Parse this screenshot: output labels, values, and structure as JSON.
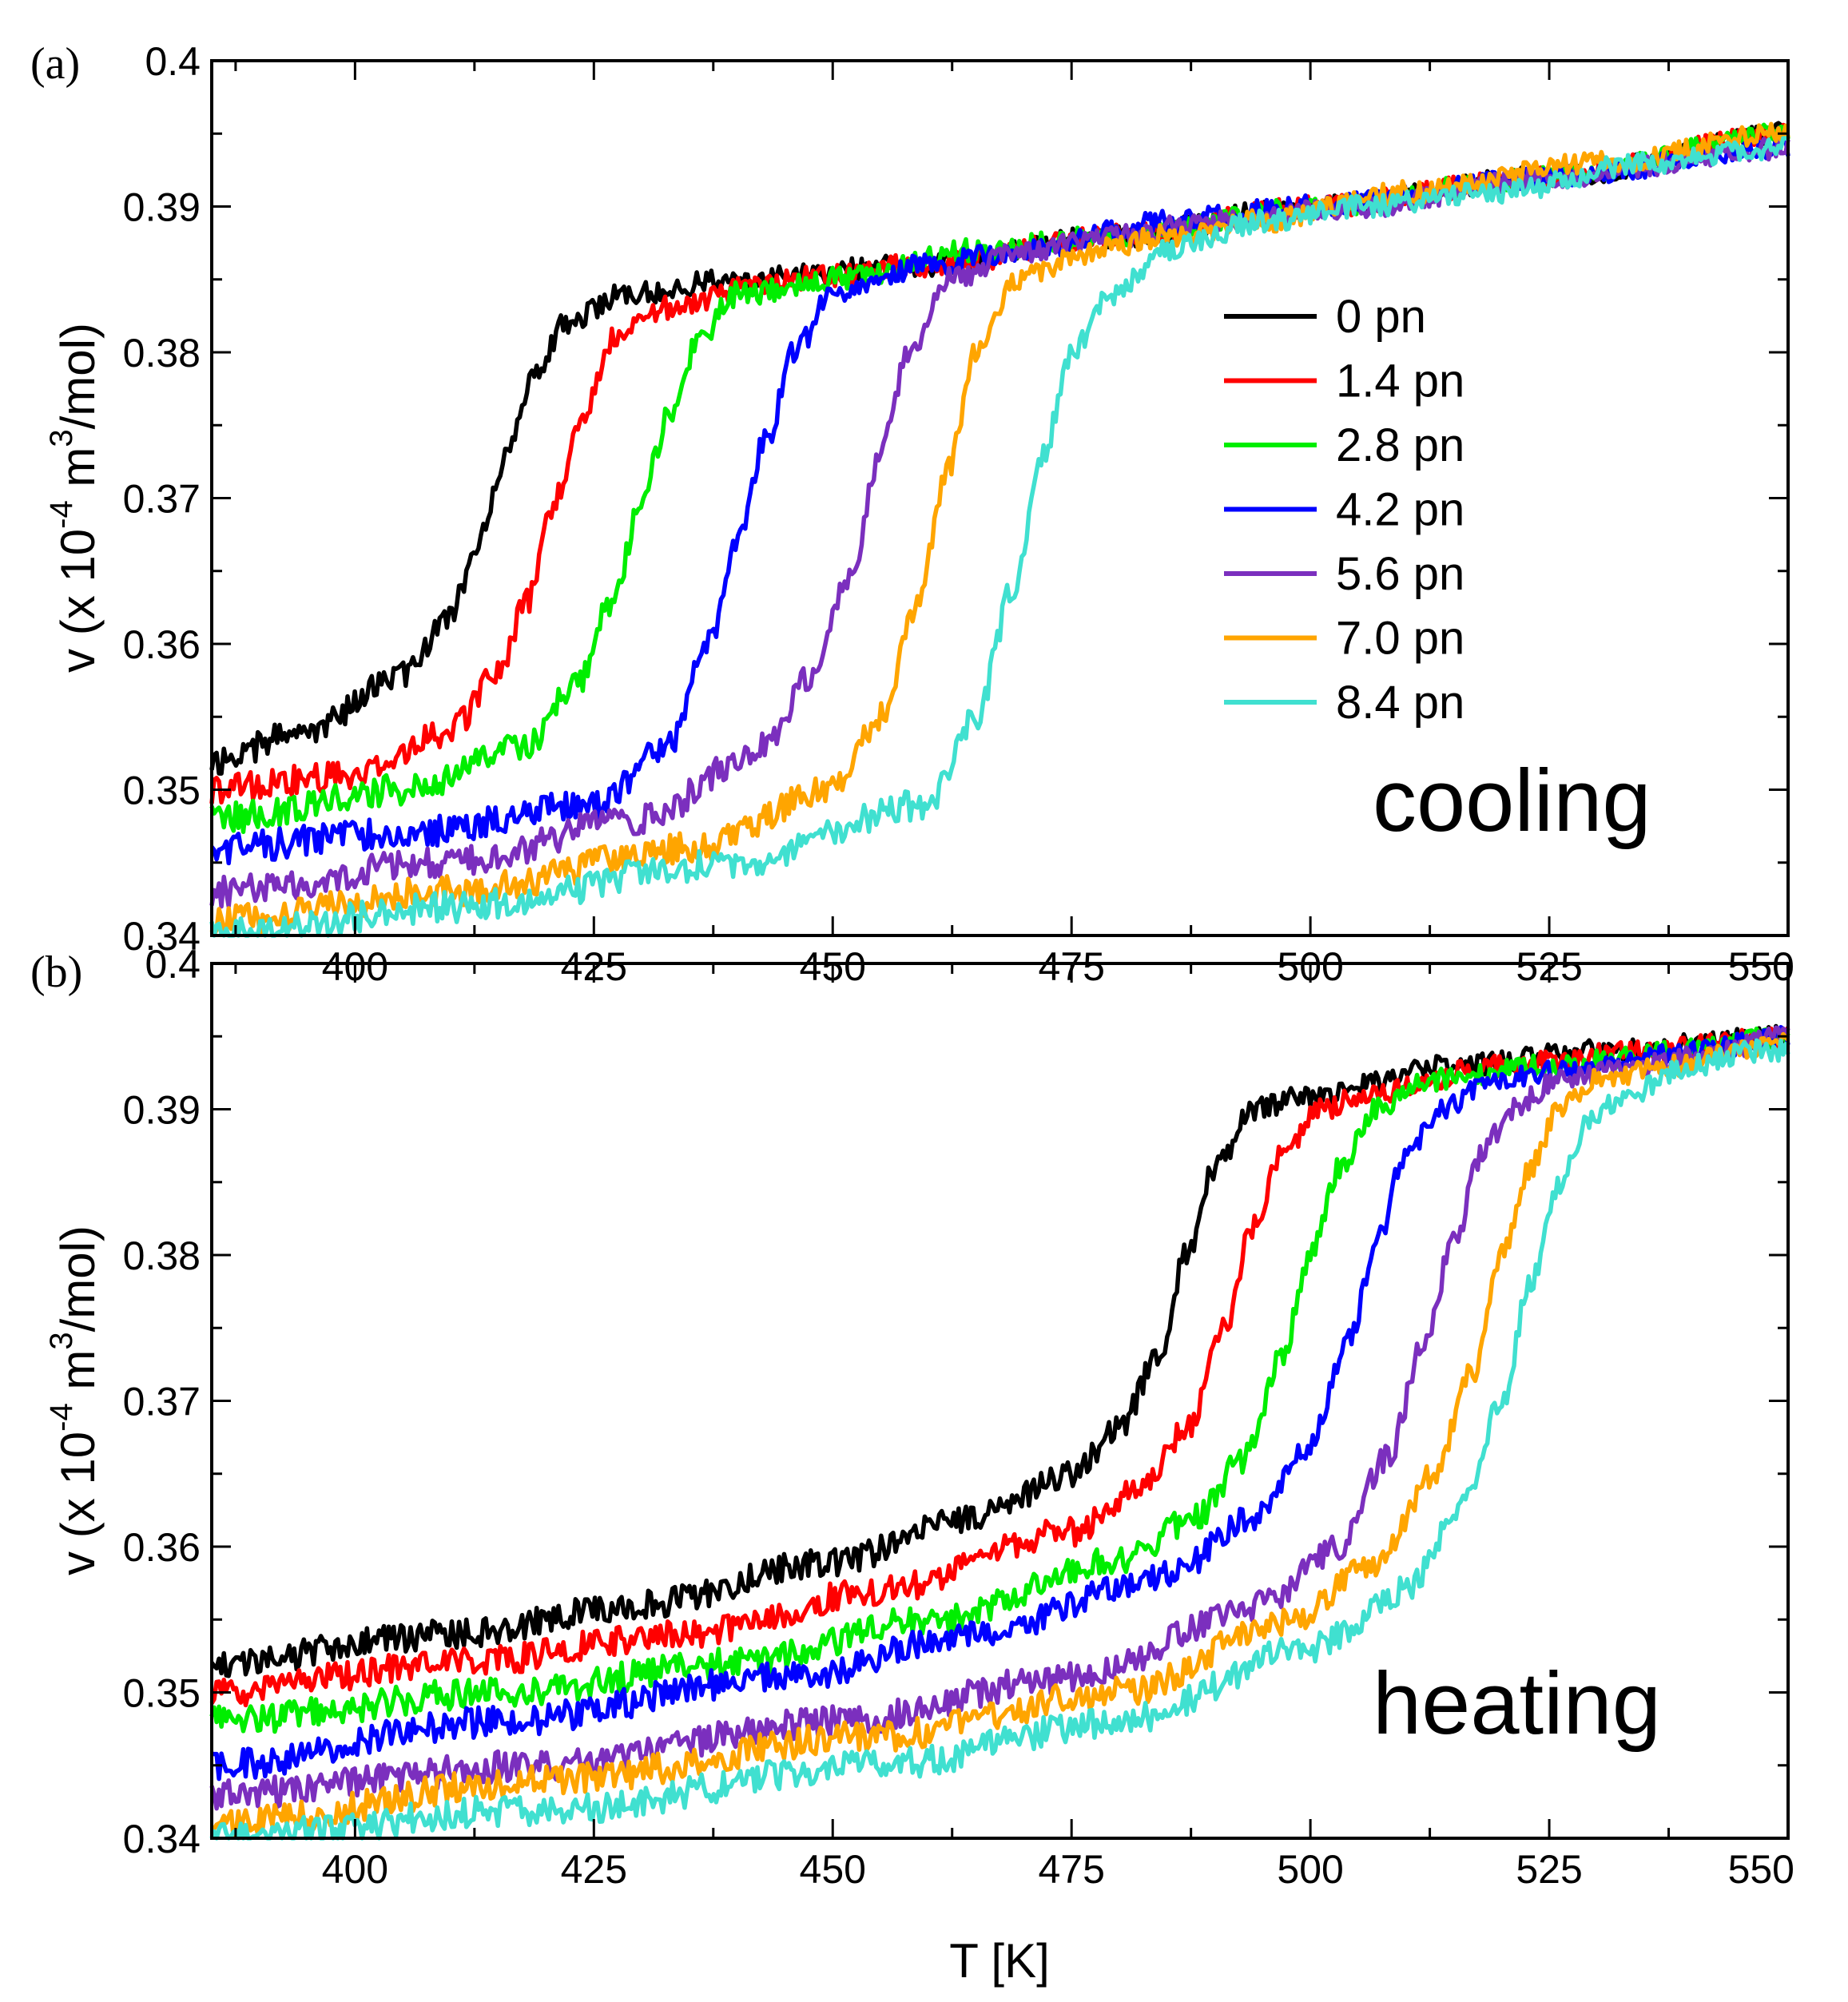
{
  "chart_data": [
    {
      "type": "line",
      "panel": "(a)",
      "annotation": "cooling",
      "xlim": [
        385,
        550
      ],
      "ylim": [
        0.34,
        0.4
      ],
      "xticks": [
        "400",
        "425",
        "450",
        "475",
        "500",
        "525",
        "550"
      ],
      "yticks": [
        "0.34",
        "0.35",
        "0.36",
        "0.37",
        "0.38",
        "0.39",
        "0.4"
      ],
      "ylabel_main": "v (x 10",
      "ylabel_exp1": "-4",
      "ylabel_mid": " m",
      "ylabel_exp2": "3",
      "ylabel_end": "/mol)",
      "legend": [
        "0 pn",
        "1.4 pn",
        "2.8 pn",
        "4.2 pn",
        "5.6 pn",
        "7.0 pn",
        "8.4 pn"
      ],
      "series": [
        {
          "name": "0 pn",
          "color": "#000000",
          "x": [
            385,
            395,
            405,
            410,
            413,
            416,
            419,
            422,
            428,
            440,
            460,
            480,
            500,
            525,
            550
          ],
          "values": [
            0.352,
            0.354,
            0.358,
            0.362,
            0.367,
            0.373,
            0.379,
            0.382,
            0.384,
            0.385,
            0.386,
            0.388,
            0.39,
            0.392,
            0.395
          ]
        },
        {
          "name": "1.4 pn",
          "color": "#ff0000",
          "x": [
            385,
            400,
            410,
            415,
            418,
            421,
            424,
            427,
            432,
            445,
            460,
            480,
            500,
            525,
            550
          ],
          "values": [
            0.35,
            0.351,
            0.354,
            0.358,
            0.363,
            0.37,
            0.376,
            0.381,
            0.383,
            0.385,
            0.386,
            0.388,
            0.39,
            0.392,
            0.395
          ]
        },
        {
          "name": "2.8 pn",
          "color": "#00ee00",
          "x": [
            385,
            405,
            418,
            423,
            427,
            430,
            433,
            436,
            440,
            450,
            465,
            480,
            500,
            525,
            550
          ],
          "values": [
            0.348,
            0.35,
            0.353,
            0.357,
            0.363,
            0.37,
            0.376,
            0.381,
            0.384,
            0.385,
            0.387,
            0.388,
            0.39,
            0.392,
            0.395
          ]
        },
        {
          "name": "4.2 pn",
          "color": "#0000ff",
          "x": [
            385,
            405,
            425,
            433,
            437,
            440,
            443,
            446,
            450,
            460,
            470,
            485,
            500,
            525,
            550
          ],
          "values": [
            0.346,
            0.347,
            0.349,
            0.353,
            0.36,
            0.367,
            0.374,
            0.38,
            0.384,
            0.386,
            0.387,
            0.389,
            0.39,
            0.392,
            0.394
          ]
        },
        {
          "name": "5.6 pn",
          "color": "#7b2fbe",
          "x": [
            385,
            410,
            430,
            443,
            448,
            452,
            455,
            458,
            462,
            470,
            480,
            490,
            505,
            525,
            550
          ],
          "values": [
            0.343,
            0.345,
            0.348,
            0.353,
            0.358,
            0.365,
            0.373,
            0.38,
            0.385,
            0.387,
            0.388,
            0.389,
            0.39,
            0.392,
            0.394
          ]
        },
        {
          "name": "7.0 pn",
          "color": "#ffa500",
          "x": [
            385,
            410,
            435,
            450,
            455,
            459,
            462,
            465,
            469,
            478,
            485,
            495,
            510,
            530,
            550
          ],
          "values": [
            0.341,
            0.343,
            0.346,
            0.35,
            0.355,
            0.363,
            0.372,
            0.38,
            0.385,
            0.387,
            0.388,
            0.389,
            0.391,
            0.393,
            0.395
          ]
        },
        {
          "name": "8.4 pn",
          "color": "#40e0d0",
          "x": [
            385,
            410,
            440,
            460,
            465,
            469,
            472,
            475,
            479,
            485,
            495,
            505,
            520,
            535,
            550
          ],
          "values": [
            0.34,
            0.342,
            0.345,
            0.349,
            0.355,
            0.364,
            0.373,
            0.38,
            0.384,
            0.387,
            0.389,
            0.39,
            0.391,
            0.393,
            0.394
          ]
        }
      ]
    },
    {
      "type": "line",
      "panel": "(b)",
      "annotation": "heating",
      "xlim": [
        385,
        550
      ],
      "ylim": [
        0.34,
        0.4
      ],
      "xticks": [
        "400",
        "425",
        "450",
        "475",
        "500",
        "525",
        "550"
      ],
      "yticks": [
        "0.34",
        "0.35",
        "0.36",
        "0.37",
        "0.38",
        "0.39",
        "0.4"
      ],
      "xlabel": "T [K]",
      "ylabel_main": "v (x 10",
      "ylabel_exp1": "-4",
      "ylabel_mid": " m",
      "ylabel_exp2": "3",
      "ylabel_end": "/mol)",
      "series": [
        {
          "name": "0 pn",
          "color": "#000000",
          "x": [
            385,
            410,
            430,
            450,
            465,
            475,
            480,
            484,
            487,
            490,
            494,
            500,
            515,
            530,
            550
          ],
          "values": [
            0.352,
            0.354,
            0.356,
            0.359,
            0.362,
            0.365,
            0.368,
            0.373,
            0.38,
            0.386,
            0.39,
            0.391,
            0.393,
            0.394,
            0.395
          ]
        },
        {
          "name": "1.4 pn",
          "color": "#ff0000",
          "x": [
            385,
            410,
            435,
            455,
            475,
            482,
            487,
            491,
            494,
            497,
            501,
            506,
            520,
            535,
            550
          ],
          "values": [
            0.35,
            0.352,
            0.354,
            0.357,
            0.361,
            0.364,
            0.368,
            0.375,
            0.382,
            0.387,
            0.39,
            0.391,
            0.393,
            0.394,
            0.395
          ]
        },
        {
          "name": "2.8 pn",
          "color": "#00ee00",
          "x": [
            385,
            415,
            440,
            460,
            480,
            488,
            493,
            497,
            500,
            503,
            507,
            512,
            525,
            538,
            550
          ],
          "values": [
            0.348,
            0.35,
            0.352,
            0.355,
            0.359,
            0.362,
            0.366,
            0.373,
            0.38,
            0.386,
            0.39,
            0.392,
            0.393,
            0.394,
            0.395
          ]
        },
        {
          "name": "4.2 pn",
          "color": "#0000ff",
          "x": [
            385,
            415,
            445,
            465,
            485,
            494,
            500,
            504,
            507,
            510,
            514,
            519,
            530,
            540,
            550
          ],
          "values": [
            0.345,
            0.348,
            0.351,
            0.354,
            0.358,
            0.362,
            0.367,
            0.374,
            0.381,
            0.387,
            0.39,
            0.392,
            0.393,
            0.394,
            0.395
          ]
        },
        {
          "name": "5.6 pn",
          "color": "#7b2fbe",
          "x": [
            385,
            420,
            450,
            475,
            495,
            503,
            508,
            512,
            515,
            518,
            521,
            526,
            535,
            543,
            550
          ],
          "values": [
            0.343,
            0.345,
            0.348,
            0.351,
            0.356,
            0.36,
            0.366,
            0.374,
            0.381,
            0.387,
            0.39,
            0.392,
            0.393,
            0.394,
            0.395
          ]
        },
        {
          "name": "7.0 pn",
          "color": "#ffa500",
          "x": [
            385,
            420,
            455,
            480,
            498,
            507,
            513,
            517,
            520,
            523,
            526,
            530,
            538,
            545,
            550
          ],
          "values": [
            0.341,
            0.344,
            0.347,
            0.35,
            0.355,
            0.359,
            0.365,
            0.372,
            0.38,
            0.386,
            0.39,
            0.392,
            0.393,
            0.394,
            0.395
          ]
        },
        {
          "name": "8.4 pn",
          "color": "#40e0d0",
          "x": [
            385,
            420,
            455,
            480,
            500,
            510,
            516,
            520,
            523,
            526,
            529,
            533,
            540,
            546,
            550
          ],
          "values": [
            0.34,
            0.342,
            0.345,
            0.348,
            0.353,
            0.357,
            0.363,
            0.37,
            0.378,
            0.385,
            0.389,
            0.391,
            0.393,
            0.394,
            0.394
          ]
        }
      ]
    }
  ]
}
